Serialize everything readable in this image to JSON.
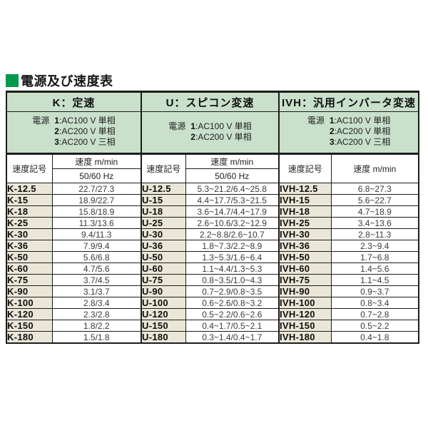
{
  "page": {
    "title": "電源及び速度表"
  },
  "colors": {
    "accent_green": "#009a4d",
    "header_green": "#c9e0cb",
    "code_beige": "#ebe7d8",
    "border": "#1c1c1c"
  },
  "table": {
    "groups": [
      {
        "header": "K：定速",
        "power_label": "電源",
        "power_lines": [
          {
            "num": "1",
            "desc": ":AC100 V 単相"
          },
          {
            "num": "2",
            "desc": ":AC200 V 単相"
          },
          {
            "num": "3",
            "desc": ":AC200 V 三相"
          }
        ],
        "code_header": "速度記号",
        "speed_header": "速度 m/min",
        "freq_header": "50/60 Hz",
        "rows": [
          {
            "code": "K-12.5",
            "value": "22.7/27.3"
          },
          {
            "code": "K-15",
            "value": "18.9/22.7"
          },
          {
            "code": "K-18",
            "value": "15.8/18.9"
          },
          {
            "code": "K-25",
            "value": "11.3/13.6"
          },
          {
            "code": "K-30",
            "value": "9.4/11.3"
          },
          {
            "code": "K-36",
            "value": "7.9/9.4"
          },
          {
            "code": "K-50",
            "value": "5.6/6.8"
          },
          {
            "code": "K-60",
            "value": "4.7/5.6"
          },
          {
            "code": "K-75",
            "value": "3.7/4.5"
          },
          {
            "code": "K-90",
            "value": "3.1/3.7"
          },
          {
            "code": "K-100",
            "value": "2.8/3.4"
          },
          {
            "code": "K-120",
            "value": "2.3/2.8"
          },
          {
            "code": "K-150",
            "value": "1.8/2.2"
          },
          {
            "code": "K-180",
            "value": "1.5/1.8"
          }
        ]
      },
      {
        "header": "U：スピコン変速",
        "power_label": "電源",
        "power_lines": [
          {
            "num": "1",
            "desc": ":AC100 V 単相"
          },
          {
            "num": "2",
            "desc": ":AC200 V 単相"
          }
        ],
        "code_header": "速度記号",
        "speed_header": "速度 m/min",
        "freq_header": "50/60 Hz",
        "rows": [
          {
            "code": "U-12.5",
            "value": "5.3~21.2/6.4~25.8"
          },
          {
            "code": "U-15",
            "value": "4.4~17.7/5.3~21.5"
          },
          {
            "code": "U-18",
            "value": "3.6~14.7/4.4~17.9"
          },
          {
            "code": "U-25",
            "value": "2.6~10.6/3.2~12.9"
          },
          {
            "code": "U-30",
            "value": "2.2~8.8/2.6~10.7"
          },
          {
            "code": "U-36",
            "value": "1.8~7.3/2.2~8.9"
          },
          {
            "code": "U-50",
            "value": "1.3~5.3/1.6~6.4"
          },
          {
            "code": "U-60",
            "value": "1.1~4.4/1.3~5.3"
          },
          {
            "code": "U-75",
            "value": "0.8~3.5/1.0~4.3"
          },
          {
            "code": "U-90",
            "value": "0.7~2.9/0.8~3.5"
          },
          {
            "code": "U-100",
            "value": "0.6~2.6/0.8~3.2"
          },
          {
            "code": "U-120",
            "value": "0.5~2.2/0.6~2.6"
          },
          {
            "code": "U-150",
            "value": "0.4~1.7/0.5~2.1"
          },
          {
            "code": "U-180",
            "value": "0.3~1.4/0.4~1.7"
          }
        ]
      },
      {
        "header": "IVH：汎用インバータ変速",
        "power_label": "電源",
        "power_lines": [
          {
            "num": "1",
            "desc": ":AC100 V 単相"
          },
          {
            "num": "2",
            "desc": ":AC200 V 単相"
          },
          {
            "num": "3",
            "desc": ":AC200 V 三相"
          }
        ],
        "code_header": "速度記号",
        "speed_header": "速度 m/min",
        "freq_header": null,
        "rows": [
          {
            "code": "IVH-12.5",
            "value": "6.8~27.3"
          },
          {
            "code": "IVH-15",
            "value": "5.6~22.7"
          },
          {
            "code": "IVH-18",
            "value": "4.7~18.9"
          },
          {
            "code": "IVH-25",
            "value": "3.4~13.6"
          },
          {
            "code": "IVH-30",
            "value": "2.8~11.3"
          },
          {
            "code": "IVH-36",
            "value": "2.3~9.4"
          },
          {
            "code": "IVH-50",
            "value": "1.7~6.8"
          },
          {
            "code": "IVH-60",
            "value": "1.4~5.6"
          },
          {
            "code": "IVH-75",
            "value": "1.1~4.5"
          },
          {
            "code": "IVH-90",
            "value": "0.9~3.7"
          },
          {
            "code": "IVH-100",
            "value": "0.8~3.4"
          },
          {
            "code": "IVH-120",
            "value": "0.7~2.8"
          },
          {
            "code": "IVH-150",
            "value": "0.5~2.2"
          },
          {
            "code": "IVH-180",
            "value": "0.4~1.8"
          }
        ]
      }
    ]
  }
}
